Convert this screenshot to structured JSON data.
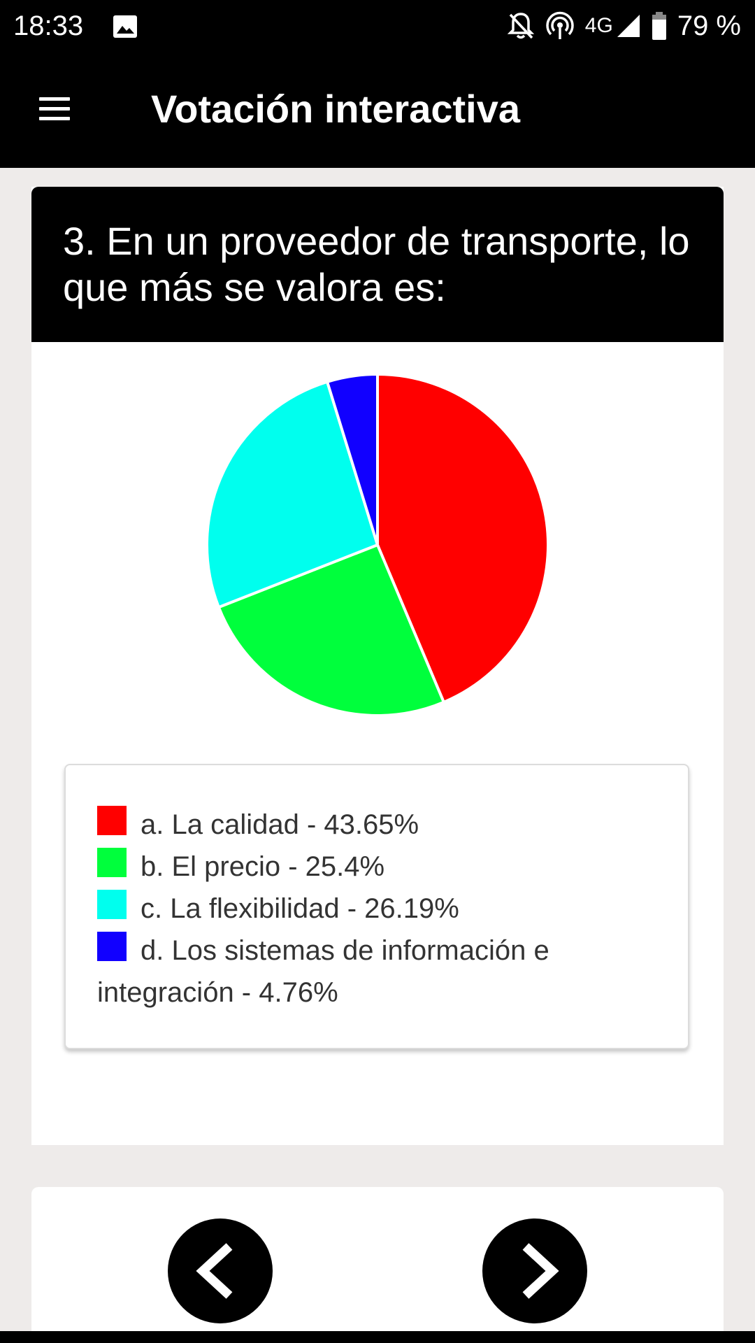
{
  "status_bar": {
    "time": "18:33",
    "network_type": "4G",
    "battery": "79 %",
    "icons": [
      "gallery-icon",
      "bell-off-icon",
      "hotspot-icon",
      "signal-icon",
      "battery-icon"
    ]
  },
  "app_bar": {
    "title": "Votación interactiva",
    "menu_icon": "menu-icon"
  },
  "question": {
    "text": "3. En un proveedor de transporte, lo que más se valora es:"
  },
  "chart_data": {
    "type": "pie",
    "categories": [
      "a. La calidad",
      "b. El precio",
      "c. La flexibilidad",
      "d. Los sistemas de información e integración"
    ],
    "values": [
      43.65,
      25.4,
      26.19,
      4.76
    ],
    "colors": [
      "#ff0000",
      "#00ff3c",
      "#00ffee",
      "#1100ff"
    ],
    "title": ""
  },
  "legend": {
    "items": [
      {
        "label": "a. La calidad - 43.65%",
        "color": "#ff0000"
      },
      {
        "label": "b. El precio - 25.4%",
        "color": "#00ff3c"
      },
      {
        "label": "c. La flexibilidad - 26.19%",
        "color": "#00ffee"
      },
      {
        "label": "d. Los sistemas de información e integración - 4.76%",
        "color": "#1100ff"
      }
    ]
  },
  "navigation": {
    "prev_icon": "chevron-left-icon",
    "next_icon": "chevron-right-icon"
  },
  "colors": {
    "background": "#eeebea",
    "bars": "#000000",
    "card": "#ffffff"
  }
}
